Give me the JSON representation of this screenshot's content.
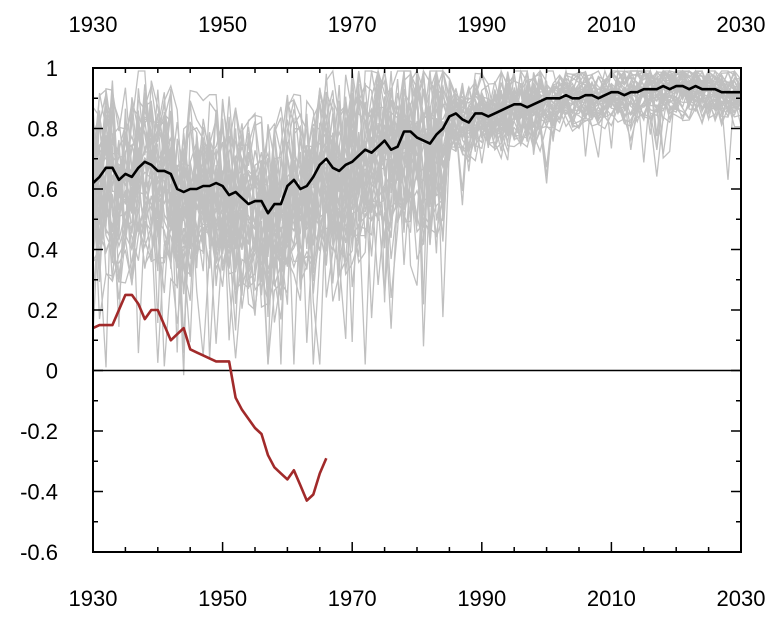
{
  "chart_data": {
    "type": "line",
    "title": "",
    "xlabel": "",
    "ylabel": "",
    "xlim": [
      1930,
      2030
    ],
    "ylim": [
      -0.6,
      1
    ],
    "x_ticks": [
      "1930",
      "1950",
      "1970",
      "1990",
      "2010",
      "2030"
    ],
    "y_ticks": [
      "1",
      "0.8",
      "0.6",
      "0.4",
      "0.2",
      "0",
      "-0.2",
      "-0.4",
      "-0.6"
    ],
    "x_tick_values": [
      1930,
      1950,
      1970,
      1990,
      2010,
      2030
    ],
    "y_tick_values": [
      1,
      0.8,
      0.6,
      0.4,
      0.2,
      0,
      -0.2,
      -0.4,
      -0.6
    ],
    "zero_line": 0,
    "ensemble": {
      "color": "#c0c0c0",
      "member_count": 40,
      "start_year": 1930,
      "end_year": 2030
    },
    "series": [
      {
        "color": "#000000",
        "x": [
          1930,
          1931,
          1932,
          1933,
          1934,
          1935,
          1936,
          1937,
          1938,
          1939,
          1940,
          1941,
          1942,
          1943,
          1944,
          1945,
          1946,
          1947,
          1948,
          1949,
          1950,
          1951,
          1952,
          1953,
          1954,
          1955,
          1956,
          1957,
          1958,
          1959,
          1960,
          1961,
          1962,
          1963,
          1964,
          1965,
          1966,
          1967,
          1968,
          1969,
          1970,
          1971,
          1972,
          1973,
          1974,
          1975,
          1976,
          1977,
          1978,
          1979,
          1980,
          1981,
          1982,
          1983,
          1984,
          1985,
          1986,
          1987,
          1988,
          1989,
          1990,
          1991,
          1992,
          1993,
          1994,
          1995,
          1996,
          1997,
          1998,
          1999,
          2000,
          2001,
          2002,
          2003,
          2004,
          2005,
          2006,
          2007,
          2008,
          2009,
          2010,
          2011,
          2012,
          2013,
          2014,
          2015,
          2016,
          2017,
          2018,
          2019,
          2020,
          2021,
          2022,
          2023,
          2024,
          2025,
          2026,
          2027,
          2028,
          2029,
          2030
        ],
        "y": [
          0.62,
          0.64,
          0.67,
          0.67,
          0.63,
          0.65,
          0.64,
          0.67,
          0.69,
          0.68,
          0.66,
          0.66,
          0.65,
          0.6,
          0.59,
          0.6,
          0.6,
          0.61,
          0.61,
          0.62,
          0.61,
          0.58,
          0.59,
          0.57,
          0.55,
          0.56,
          0.56,
          0.52,
          0.55,
          0.55,
          0.61,
          0.63,
          0.6,
          0.61,
          0.64,
          0.68,
          0.7,
          0.67,
          0.66,
          0.68,
          0.69,
          0.71,
          0.73,
          0.72,
          0.74,
          0.76,
          0.73,
          0.74,
          0.79,
          0.79,
          0.77,
          0.76,
          0.75,
          0.78,
          0.8,
          0.84,
          0.85,
          0.83,
          0.82,
          0.85,
          0.85,
          0.84,
          0.85,
          0.86,
          0.87,
          0.88,
          0.88,
          0.87,
          0.88,
          0.89,
          0.9,
          0.9,
          0.9,
          0.91,
          0.9,
          0.9,
          0.91,
          0.91,
          0.9,
          0.91,
          0.92,
          0.92,
          0.91,
          0.92,
          0.92,
          0.93,
          0.93,
          0.93,
          0.94,
          0.93,
          0.94,
          0.94,
          0.93,
          0.94,
          0.93,
          0.93,
          0.93,
          0.92,
          0.92,
          0.92,
          0.92
        ]
      },
      {
        "color": "#a12a2a",
        "x": [
          1930,
          1931,
          1932,
          1933,
          1934,
          1935,
          1936,
          1937,
          1938,
          1939,
          1940,
          1941,
          1942,
          1943,
          1944,
          1945,
          1946,
          1947,
          1948,
          1949,
          1950,
          1951,
          1952,
          1953,
          1954,
          1955,
          1956,
          1957,
          1958,
          1959,
          1960,
          1961,
          1962,
          1963,
          1964,
          1965,
          1966
        ],
        "y": [
          0.14,
          0.15,
          0.15,
          0.15,
          0.2,
          0.25,
          0.25,
          0.22,
          0.17,
          0.2,
          0.2,
          0.15,
          0.1,
          0.12,
          0.14,
          0.07,
          0.06,
          0.05,
          0.04,
          0.03,
          0.03,
          0.03,
          -0.09,
          -0.13,
          -0.16,
          -0.19,
          -0.21,
          -0.28,
          -0.32,
          -0.34,
          -0.36,
          -0.33,
          -0.38,
          -0.43,
          -0.41,
          -0.34,
          -0.29
        ]
      }
    ]
  }
}
